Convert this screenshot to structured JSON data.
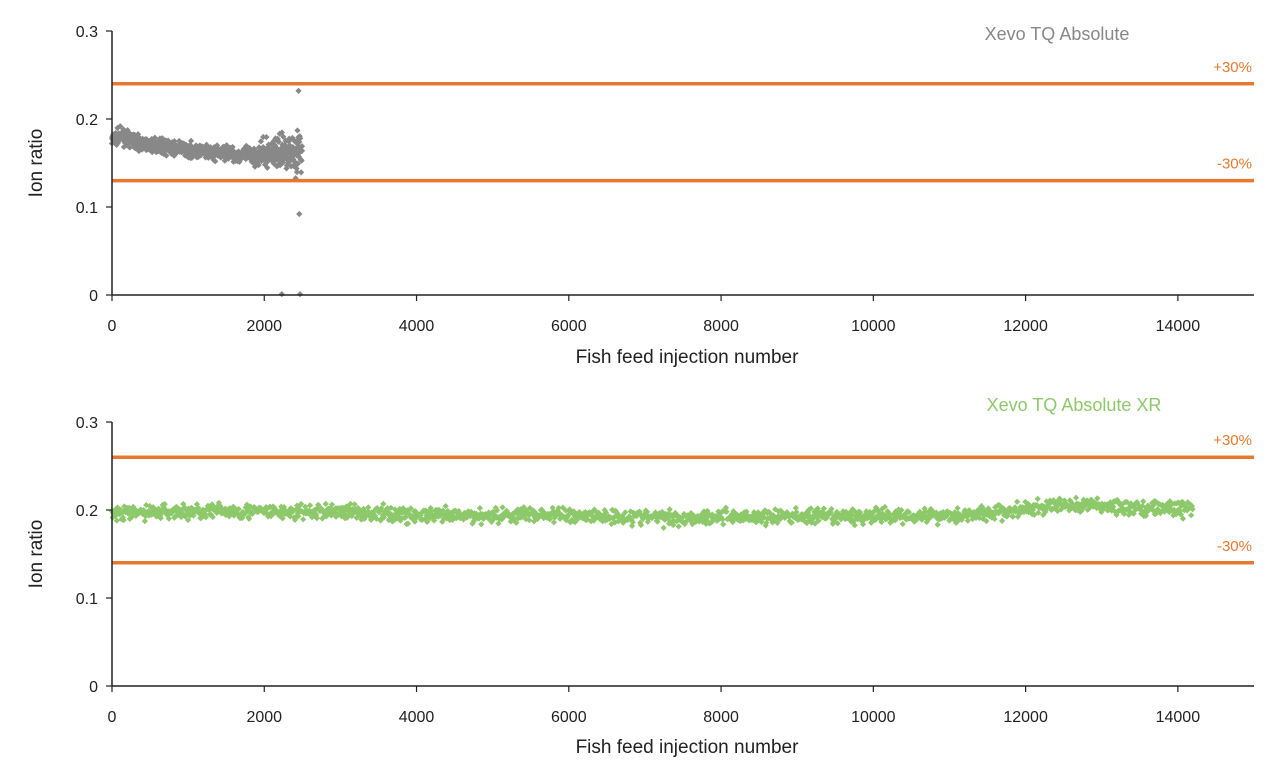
{
  "colors": {
    "reference_line": "#e8782f",
    "axis": "#222222"
  },
  "chart_data": [
    {
      "type": "scatter",
      "title": "",
      "xlabel": "Fish feed injection number",
      "ylabel": "Ion ratio",
      "xlim": [
        0,
        15000
      ],
      "ylim": [
        0,
        0.3
      ],
      "xticks": [
        "0",
        "2000",
        "4000",
        "6000",
        "8000",
        "10000",
        "12000",
        "14000"
      ],
      "yticks": [
        "0",
        "0.1",
        "0.2",
        "0.3"
      ],
      "grid": false,
      "legend": "top-right",
      "series": [
        {
          "name": "Xevo TQ Absolute",
          "color": "#888888",
          "x_range": [
            0,
            2500
          ],
          "points": [
            [
              0,
              0.176
            ],
            [
              100,
              0.181
            ],
            [
              200,
              0.178
            ],
            [
              300,
              0.175
            ],
            [
              400,
              0.172
            ],
            [
              500,
              0.17
            ],
            [
              600,
              0.171
            ],
            [
              700,
              0.168
            ],
            [
              800,
              0.166
            ],
            [
              900,
              0.167
            ],
            [
              1000,
              0.165
            ],
            [
              1100,
              0.164
            ],
            [
              1200,
              0.163
            ],
            [
              1300,
              0.162
            ],
            [
              1400,
              0.161
            ],
            [
              1500,
              0.162
            ],
            [
              1600,
              0.16
            ],
            [
              1700,
              0.159
            ],
            [
              1800,
              0.16
            ],
            [
              1900,
              0.158
            ],
            [
              2000,
              0.161
            ],
            [
              2100,
              0.162
            ],
            [
              2200,
              0.163
            ],
            [
              2300,
              0.165
            ],
            [
              2400,
              0.163
            ],
            [
              2480,
              0.162
            ]
          ],
          "outliers": [
            [
              2230,
              0.001
            ],
            [
              2470,
              0.001
            ],
            [
              2450,
              0.232
            ],
            [
              2460,
              0.092
            ]
          ]
        }
      ],
      "reference_lines": [
        {
          "label": "+30%",
          "y": 0.24
        },
        {
          "label": "-30%",
          "y": 0.13
        }
      ]
    },
    {
      "type": "scatter",
      "title": "",
      "xlabel": "Fish feed injection number",
      "ylabel": "Ion ratio",
      "xlim": [
        0,
        15000
      ],
      "ylim": [
        0,
        0.3
      ],
      "xticks": [
        "0",
        "2000",
        "4000",
        "6000",
        "8000",
        "10000",
        "12000",
        "14000"
      ],
      "yticks": [
        "0",
        "0.1",
        "0.2",
        "0.3"
      ],
      "grid": false,
      "legend": "top-right",
      "series": [
        {
          "name": "Xevo TQ Absolute XR",
          "color": "#8dc96a",
          "x_range": [
            0,
            14200
          ],
          "points": [
            [
              0,
              0.195
            ],
            [
              500,
              0.198
            ],
            [
              1000,
              0.198
            ],
            [
              1500,
              0.199
            ],
            [
              2000,
              0.198
            ],
            [
              2500,
              0.197
            ],
            [
              3000,
              0.199
            ],
            [
              3500,
              0.196
            ],
            [
              4000,
              0.194
            ],
            [
              4500,
              0.193
            ],
            [
              5000,
              0.194
            ],
            [
              5500,
              0.195
            ],
            [
              6000,
              0.194
            ],
            [
              6500,
              0.193
            ],
            [
              7000,
              0.192
            ],
            [
              7500,
              0.191
            ],
            [
              8000,
              0.193
            ],
            [
              8500,
              0.192
            ],
            [
              9000,
              0.193
            ],
            [
              9500,
              0.192
            ],
            [
              10000,
              0.193
            ],
            [
              10500,
              0.194
            ],
            [
              11000,
              0.194
            ],
            [
              11500,
              0.196
            ],
            [
              12000,
              0.2
            ],
            [
              12500,
              0.206
            ],
            [
              13000,
              0.205
            ],
            [
              13500,
              0.202
            ],
            [
              14000,
              0.202
            ],
            [
              14200,
              0.201
            ]
          ],
          "outliers": []
        }
      ],
      "reference_lines": [
        {
          "label": "+30%",
          "y": 0.26
        },
        {
          "label": "-30%",
          "y": 0.14
        }
      ]
    }
  ]
}
